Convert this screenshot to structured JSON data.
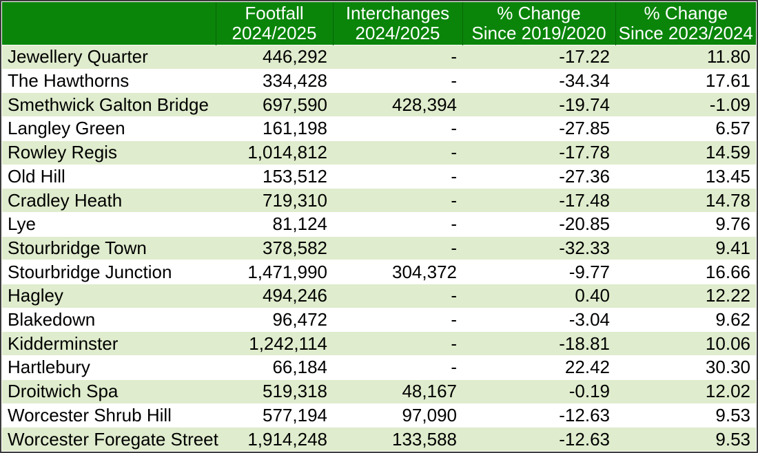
{
  "colors": {
    "header_bg": "#0a850a",
    "header_text": "#ffffff",
    "row_bg": "#ffffff",
    "row_alt_bg": "#dfeccd",
    "frame_border": "#3d3d3d",
    "body_text": "#000000"
  },
  "table": {
    "headers": {
      "station": "",
      "footfall": {
        "line1": "Footfall",
        "line2": "2024/2025"
      },
      "interchanges": {
        "line1": "Interchanges",
        "line2": "2024/2025"
      },
      "change_2019": {
        "line1": "% Change",
        "line2": "Since 2019/2020"
      },
      "change_2023": {
        "line1": "% Change",
        "line2": "Since 2023/2024"
      }
    }
  },
  "chart_data": {
    "type": "table",
    "columns": [
      "Station",
      "Footfall 2024/2025",
      "Interchanges 2024/2025",
      "% Change Since 2019/2020",
      "% Change Since 2023/2024"
    ],
    "rows": [
      [
        "Jewellery Quarter",
        "446,292",
        "-",
        "-17.22",
        "11.80"
      ],
      [
        "The Hawthorns",
        "334,428",
        "-",
        "-34.34",
        "17.61"
      ],
      [
        "Smethwick Galton Bridge",
        "697,590",
        "428,394",
        "-19.74",
        "-1.09"
      ],
      [
        "Langley Green",
        "161,198",
        "-",
        "-27.85",
        "6.57"
      ],
      [
        "Rowley Regis",
        "1,014,812",
        "-",
        "-17.78",
        "14.59"
      ],
      [
        "Old Hill",
        "153,512",
        "-",
        "-27.36",
        "13.45"
      ],
      [
        "Cradley Heath",
        "719,310",
        "-",
        "-17.48",
        "14.78"
      ],
      [
        "Lye",
        "81,124",
        "-",
        "-20.85",
        "9.76"
      ],
      [
        "Stourbridge Town",
        "378,582",
        "-",
        "-32.33",
        "9.41"
      ],
      [
        "Stourbridge Junction",
        "1,471,990",
        "304,372",
        "-9.77",
        "16.66"
      ],
      [
        "Hagley",
        "494,246",
        "-",
        "0.40",
        "12.22"
      ],
      [
        "Blakedown",
        "96,472",
        "-",
        "-3.04",
        "9.62"
      ],
      [
        "Kidderminster",
        "1,242,114",
        "-",
        "-18.81",
        "10.06"
      ],
      [
        "Hartlebury",
        "66,184",
        "-",
        "22.42",
        "30.30"
      ],
      [
        "Droitwich Spa",
        "519,318",
        "48,167",
        "-0.19",
        "12.02"
      ],
      [
        "Worcester Shrub Hill",
        "577,194",
        "97,090",
        "-12.63",
        "9.53"
      ],
      [
        "Worcester Foregate Street",
        "1,914,248",
        "133,588",
        "-12.63",
        "9.53"
      ]
    ]
  }
}
